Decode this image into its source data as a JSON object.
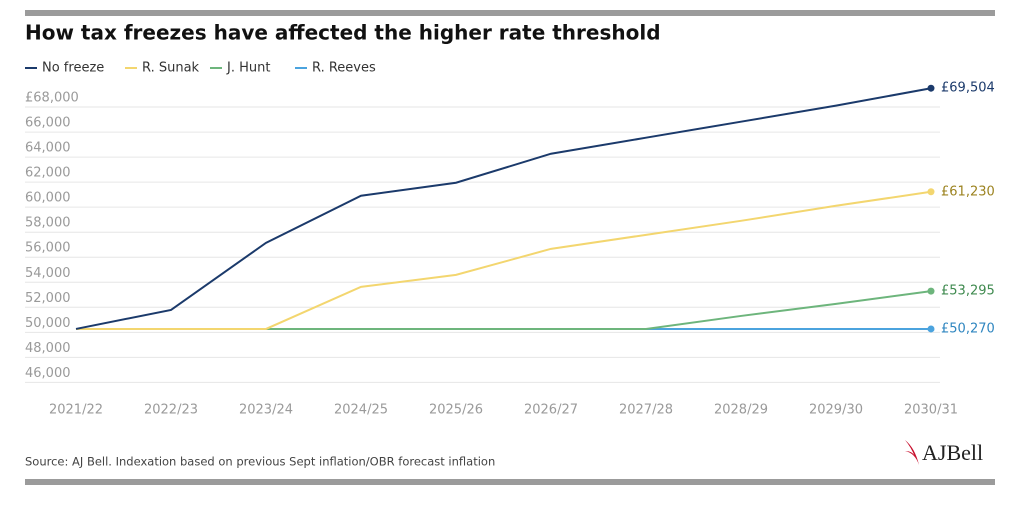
{
  "chart_data": {
    "type": "line",
    "title": "How tax freezes have affected the higher rate threshold",
    "source": "Source: AJ Bell. Indexation based on previous Sept inflation/OBR forecast inflation",
    "logo": "AJBell",
    "categories": [
      "2021/22",
      "2022/23",
      "2023/24",
      "2024/25",
      "2025/26",
      "2026/27",
      "2027/28",
      "2028/29",
      "2029/30",
      "2030/31"
    ],
    "series": [
      {
        "name": "No freeze",
        "color": "#1b3a6b",
        "label_color": "#1b3a6b",
        "values": [
          50270,
          51790,
          57150,
          60910,
          61950,
          64270,
          65550,
          66830,
          68110,
          69504
        ],
        "value_labels": [
          null,
          null,
          null,
          null,
          null,
          null,
          null,
          null,
          null,
          "£69,504"
        ]
      },
      {
        "name": "R. Sunak",
        "color": "#f3d66f",
        "label_color": "#9c8320",
        "values": [
          50270,
          50270,
          50270,
          53630,
          54590,
          56670,
          57790,
          58910,
          60110,
          61230
        ],
        "value_labels": [
          null,
          null,
          null,
          null,
          null,
          null,
          null,
          null,
          null,
          "£61,230"
        ]
      },
      {
        "name": "J. Hunt",
        "color": "#6db57c",
        "label_color": "#3f8a4f",
        "values": [
          50270,
          50270,
          50270,
          50270,
          50270,
          50270,
          50270,
          51310,
          52270,
          53295
        ],
        "value_labels": [
          null,
          null,
          null,
          null,
          null,
          null,
          null,
          null,
          null,
          "£53,295"
        ]
      },
      {
        "name": "R. Reeves",
        "color": "#4ba3de",
        "label_color": "#2f86c0",
        "values": [
          50270,
          50270,
          50270,
          50270,
          50270,
          50270,
          50270,
          50270,
          50270,
          50270
        ],
        "value_labels": [
          null,
          null,
          null,
          null,
          null,
          null,
          null,
          null,
          null,
          "£50,270"
        ]
      }
    ],
    "ylim": [
      46000,
      70000
    ],
    "yticks": [
      {
        "value": 46000,
        "label": "46,000"
      },
      {
        "value": 48000,
        "label": "48,000"
      },
      {
        "value": 50000,
        "label": "50,000"
      },
      {
        "value": 52000,
        "label": "52,000"
      },
      {
        "value": 54000,
        "label": "54,000"
      },
      {
        "value": 56000,
        "label": "56,000"
      },
      {
        "value": 58000,
        "label": "58,000"
      },
      {
        "value": 60000,
        "label": "60,000"
      },
      {
        "value": 62000,
        "label": "62,000"
      },
      {
        "value": 64000,
        "label": "64,000"
      },
      {
        "value": 66000,
        "label": "66,000"
      },
      {
        "value": 68000,
        "label": "£68,000"
      }
    ],
    "grid": true
  }
}
